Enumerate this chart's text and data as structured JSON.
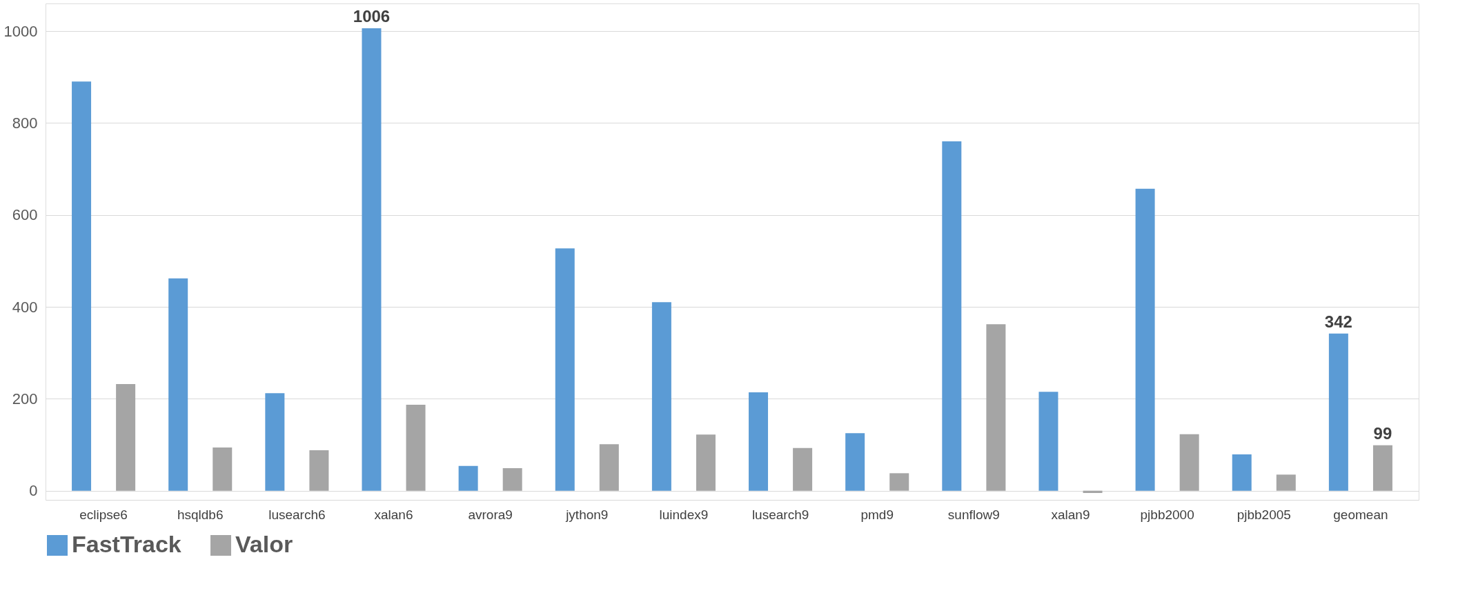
{
  "chart_data": {
    "type": "bar",
    "categories": [
      "eclipse6",
      "hsqldb6",
      "lusearch6",
      "xalan6",
      "avrora9",
      "jython9",
      "luindex9",
      "lusearch9",
      "pmd9",
      "sunflow9",
      "xalan9",
      "pjbb2000",
      "pjbb2005",
      "geomean"
    ],
    "series": [
      {
        "name": "FastTrack",
        "color": "#5b9bd5",
        "values": [
          890,
          462,
          212,
          1006,
          54,
          527,
          410,
          214,
          125,
          760,
          215,
          657,
          79,
          342
        ],
        "value_labels": [
          null,
          null,
          null,
          "1006",
          null,
          null,
          null,
          null,
          null,
          null,
          null,
          null,
          null,
          "342"
        ]
      },
      {
        "name": "Valor",
        "color": "#a5a5a5",
        "values": [
          232,
          94,
          88,
          187,
          49,
          101,
          122,
          93,
          38,
          362,
          -5,
          123,
          35,
          99
        ],
        "value_labels": [
          null,
          null,
          null,
          null,
          null,
          null,
          null,
          null,
          null,
          null,
          null,
          null,
          null,
          "99"
        ]
      }
    ],
    "ylim": [
      -20,
      1060
    ],
    "yticks": [
      0,
      200,
      400,
      600,
      800,
      1000
    ],
    "grid": "y",
    "legend": "bottom"
  }
}
